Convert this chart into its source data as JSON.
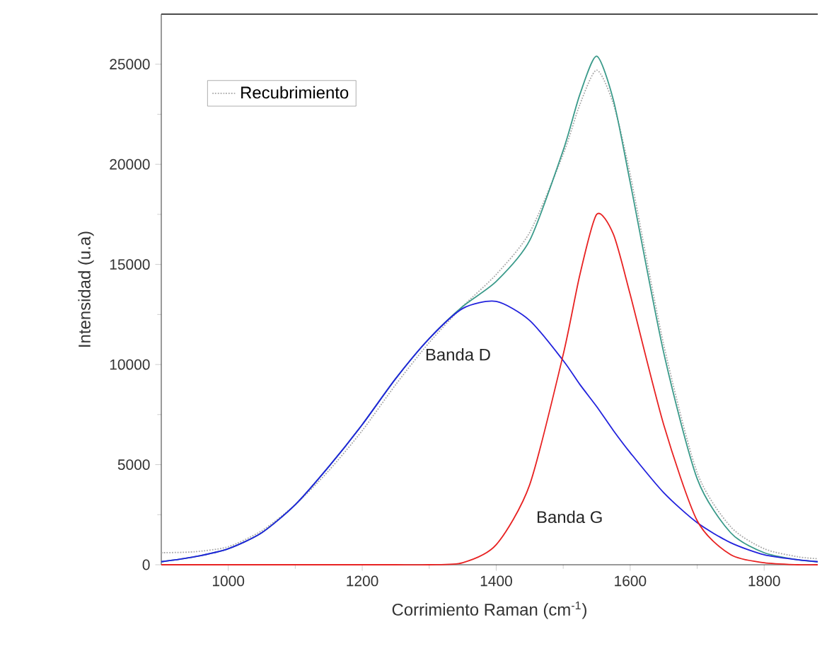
{
  "chart_data": {
    "type": "line",
    "xlabel": "Corrimiento Raman (cm$^{-1}$)",
    "ylabel": "Intensidad (u.a)",
    "x": [
      900,
      950,
      1000,
      1050,
      1100,
      1150,
      1200,
      1250,
      1300,
      1350,
      1400,
      1450,
      1500,
      1525,
      1550,
      1575,
      1600,
      1650,
      1700,
      1750,
      1800,
      1850,
      1880
    ],
    "series": [
      {
        "name": "Recubrimiento",
        "color": "#a8a8a8",
        "line_style": "dotted",
        "values": [
          600,
          650,
          900,
          1700,
          3000,
          4700,
          6700,
          9000,
          11100,
          12900,
          14500,
          16600,
          20500,
          23000,
          24700,
          23000,
          19500,
          11000,
          4600,
          1900,
          800,
          400,
          300
        ]
      },
      {
        "color": "#3a9a8a",
        "line_style": "solid",
        "values": [
          150,
          400,
          800,
          1600,
          3000,
          4900,
          7000,
          9300,
          11300,
          12900,
          14150,
          16200,
          20700,
          23500,
          25400,
          23200,
          19100,
          10600,
          4300,
          1600,
          600,
          250,
          150
        ]
      },
      {
        "color": "#2222dd",
        "line_style": "solid",
        "values": [
          150,
          400,
          800,
          1600,
          3000,
          4900,
          7000,
          9300,
          11300,
          12800,
          13150,
          12200,
          10200,
          9000,
          7900,
          6700,
          5600,
          3600,
          2100,
          1100,
          500,
          250,
          150
        ]
      },
      {
        "color": "#e82222",
        "line_style": "solid",
        "values": [
          0,
          0,
          0,
          0,
          0,
          0,
          0,
          0,
          0,
          100,
          1000,
          4000,
          10500,
          14500,
          17500,
          16500,
          13500,
          7000,
          2200,
          500,
          100,
          0,
          0
        ]
      }
    ],
    "annotations": [
      "Banda D",
      "Banda G"
    ],
    "xlim": [
      900,
      1880
    ],
    "ylim": [
      0,
      27500
    ],
    "xticks": [
      1000,
      1200,
      1400,
      1600,
      1800
    ],
    "yticks": [
      0,
      5000,
      10000,
      15000,
      20000,
      25000
    ],
    "legend": "top left"
  }
}
